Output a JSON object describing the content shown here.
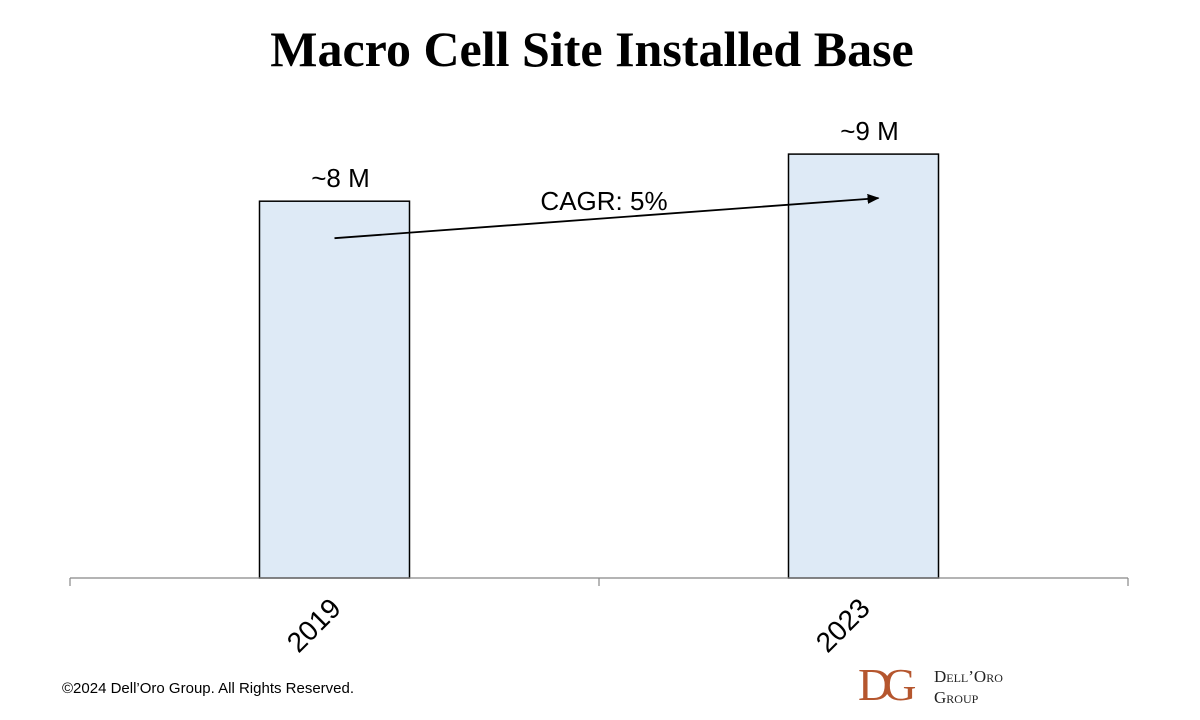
{
  "chart_data": {
    "type": "bar",
    "title": "Macro Cell Site Installed Base",
    "categories": [
      "2019",
      "2023"
    ],
    "values": [
      8,
      9
    ],
    "value_labels": [
      "~8 M",
      "~9 M"
    ],
    "ylim": [
      0,
      10
    ],
    "annotation": "CAGR: 5%",
    "bar_fill": "#deeaf6",
    "bar_stroke": "#000000",
    "grid": false
  },
  "footer": {
    "copyright": "©2024 Dell’Oro Group. All Rights Reserved.",
    "logo_mark": "DG",
    "logo_line1": "Dell’Oro",
    "logo_line2": "Group"
  }
}
